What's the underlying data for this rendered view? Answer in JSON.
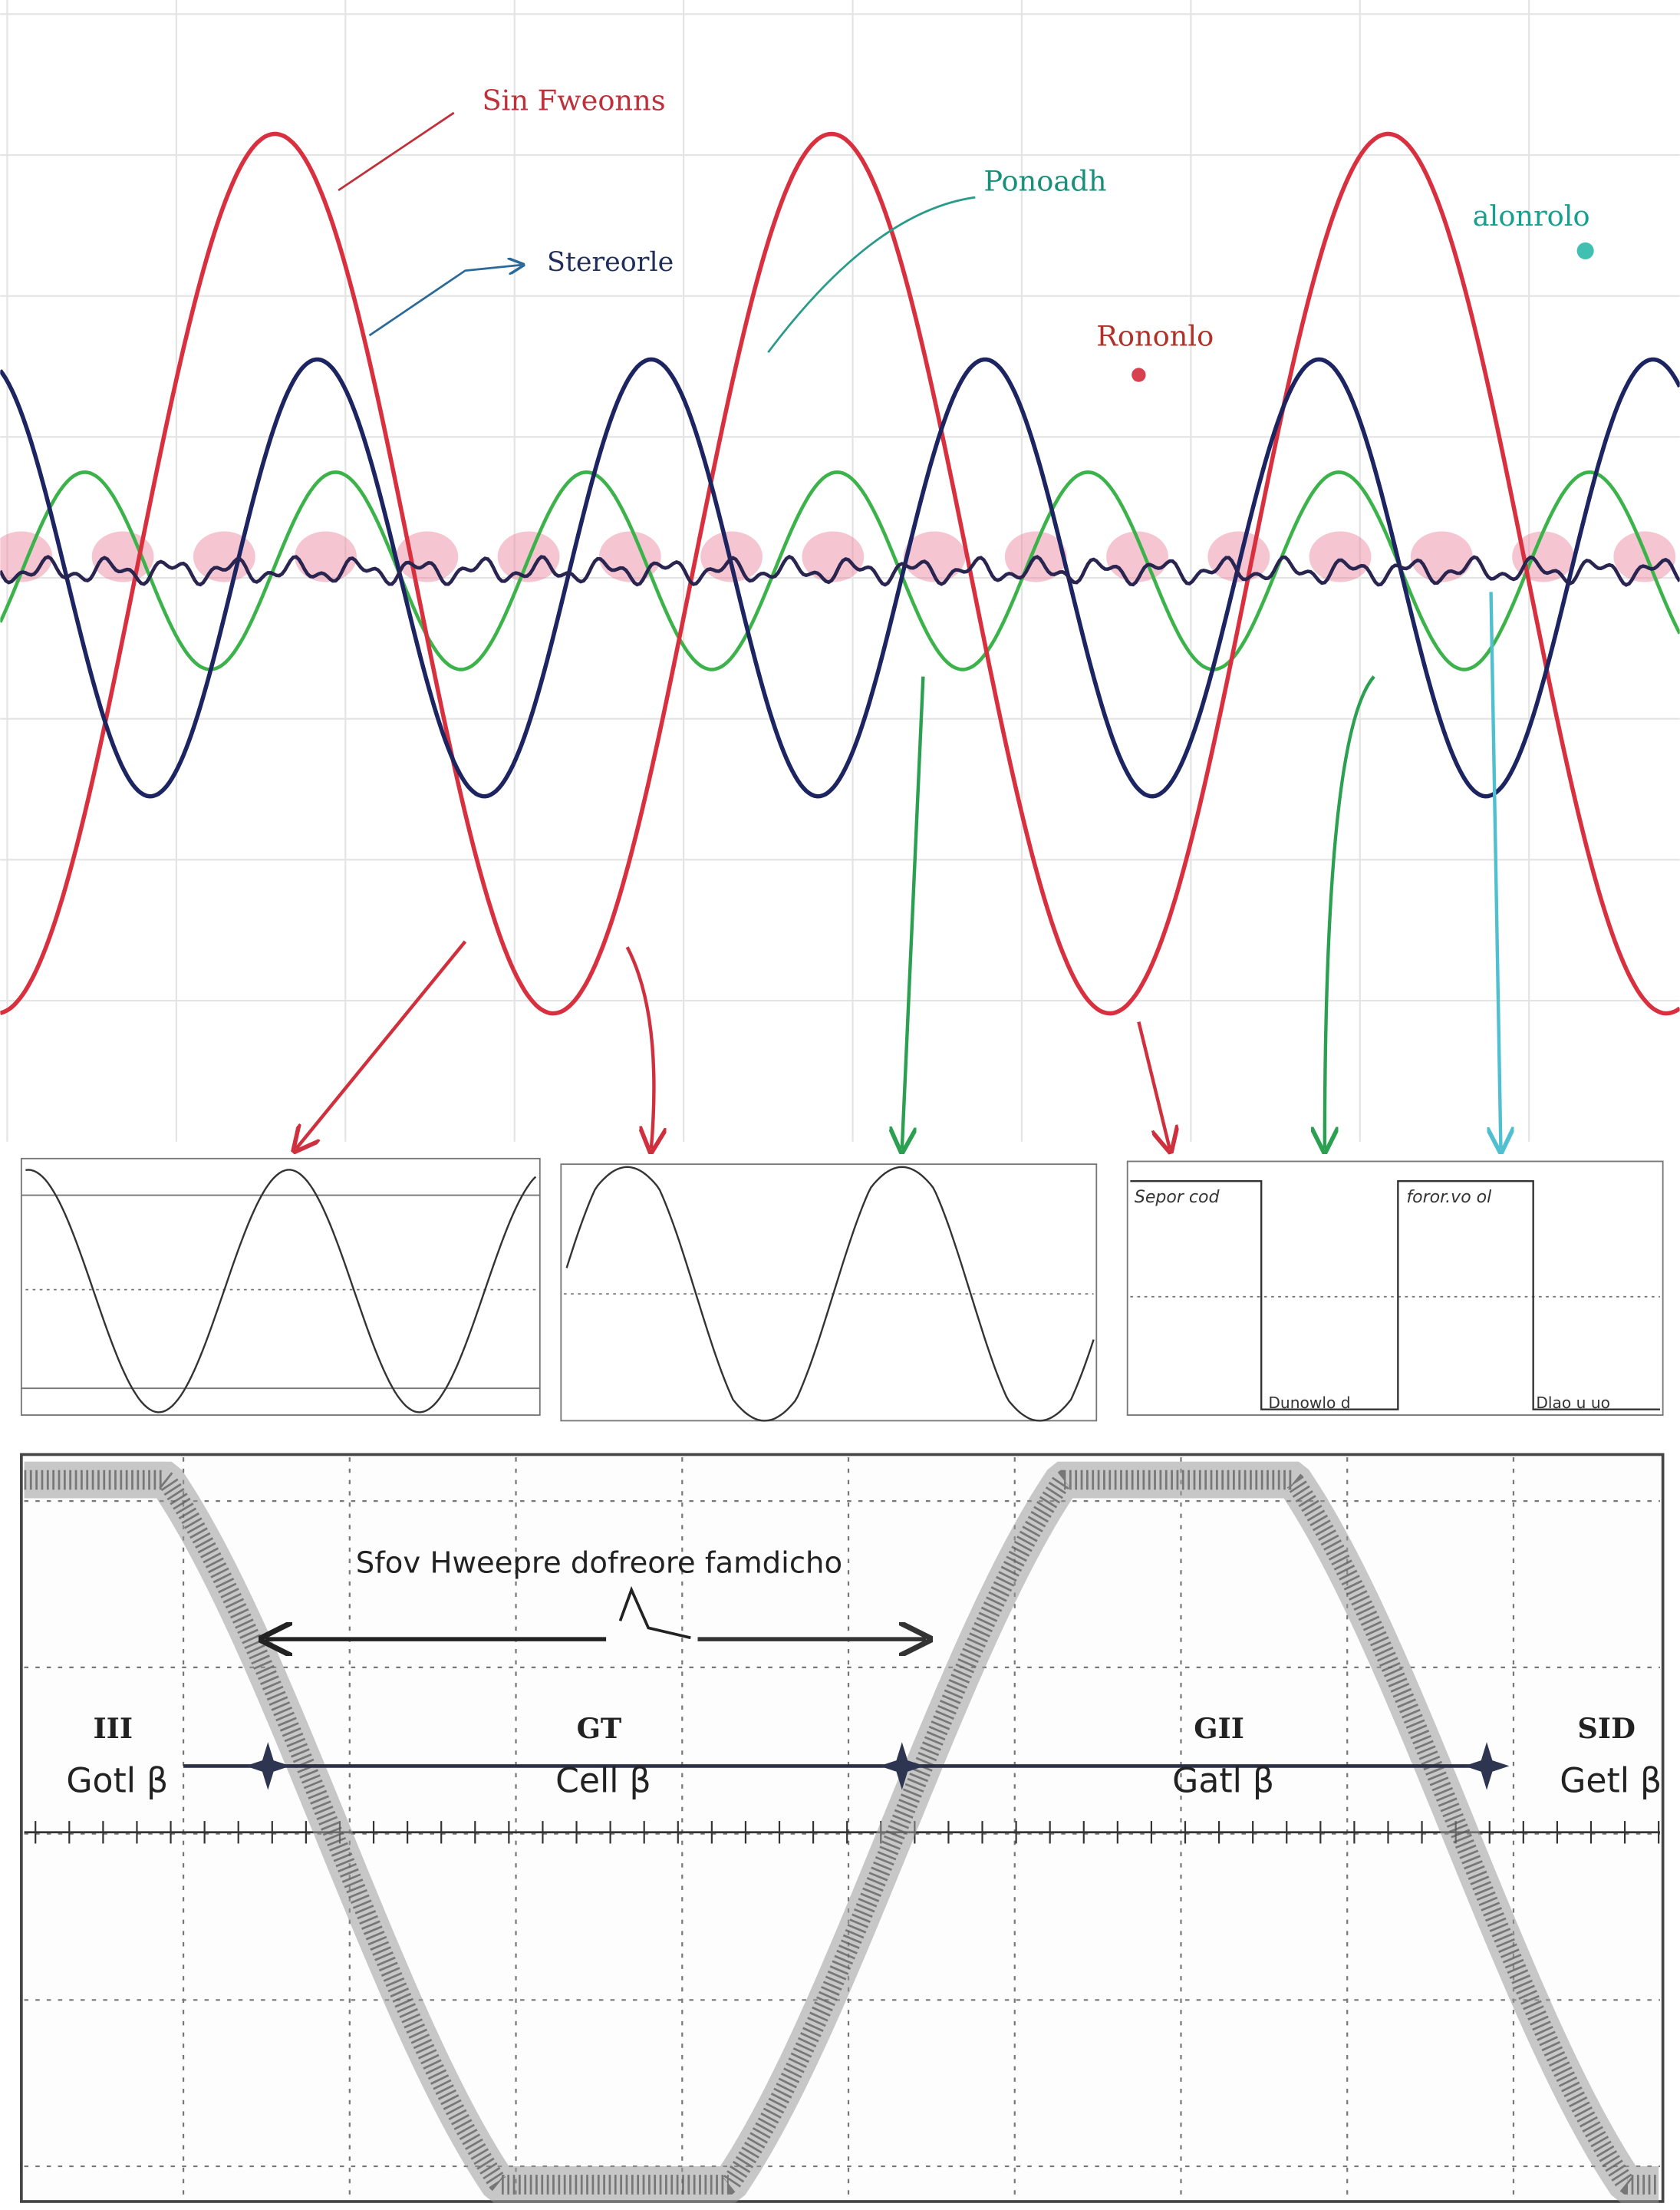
{
  "annotations": {
    "sine": "Sin Fweonns",
    "stereo": "Stereorle",
    "ronodh": "Ponoadh",
    "rononlo": "Rononlo",
    "alonrolo": "alonrolo"
  },
  "panels": {
    "left_label": "Sepor cod",
    "right_label": "foror.vo ol",
    "bottom_left": "Dunowlo d",
    "bottom_right": "Dlao u uo"
  },
  "bottom": {
    "title": "Sfov Hweepre dofreore famdicho",
    "cells": [
      {
        "tag": "III",
        "label": "Gotl β"
      },
      {
        "tag": "GT",
        "label": "Cell β"
      },
      {
        "tag": "GII",
        "label": "Gatl β"
      },
      {
        "tag": "SID",
        "label": "Getl β"
      }
    ]
  }
}
